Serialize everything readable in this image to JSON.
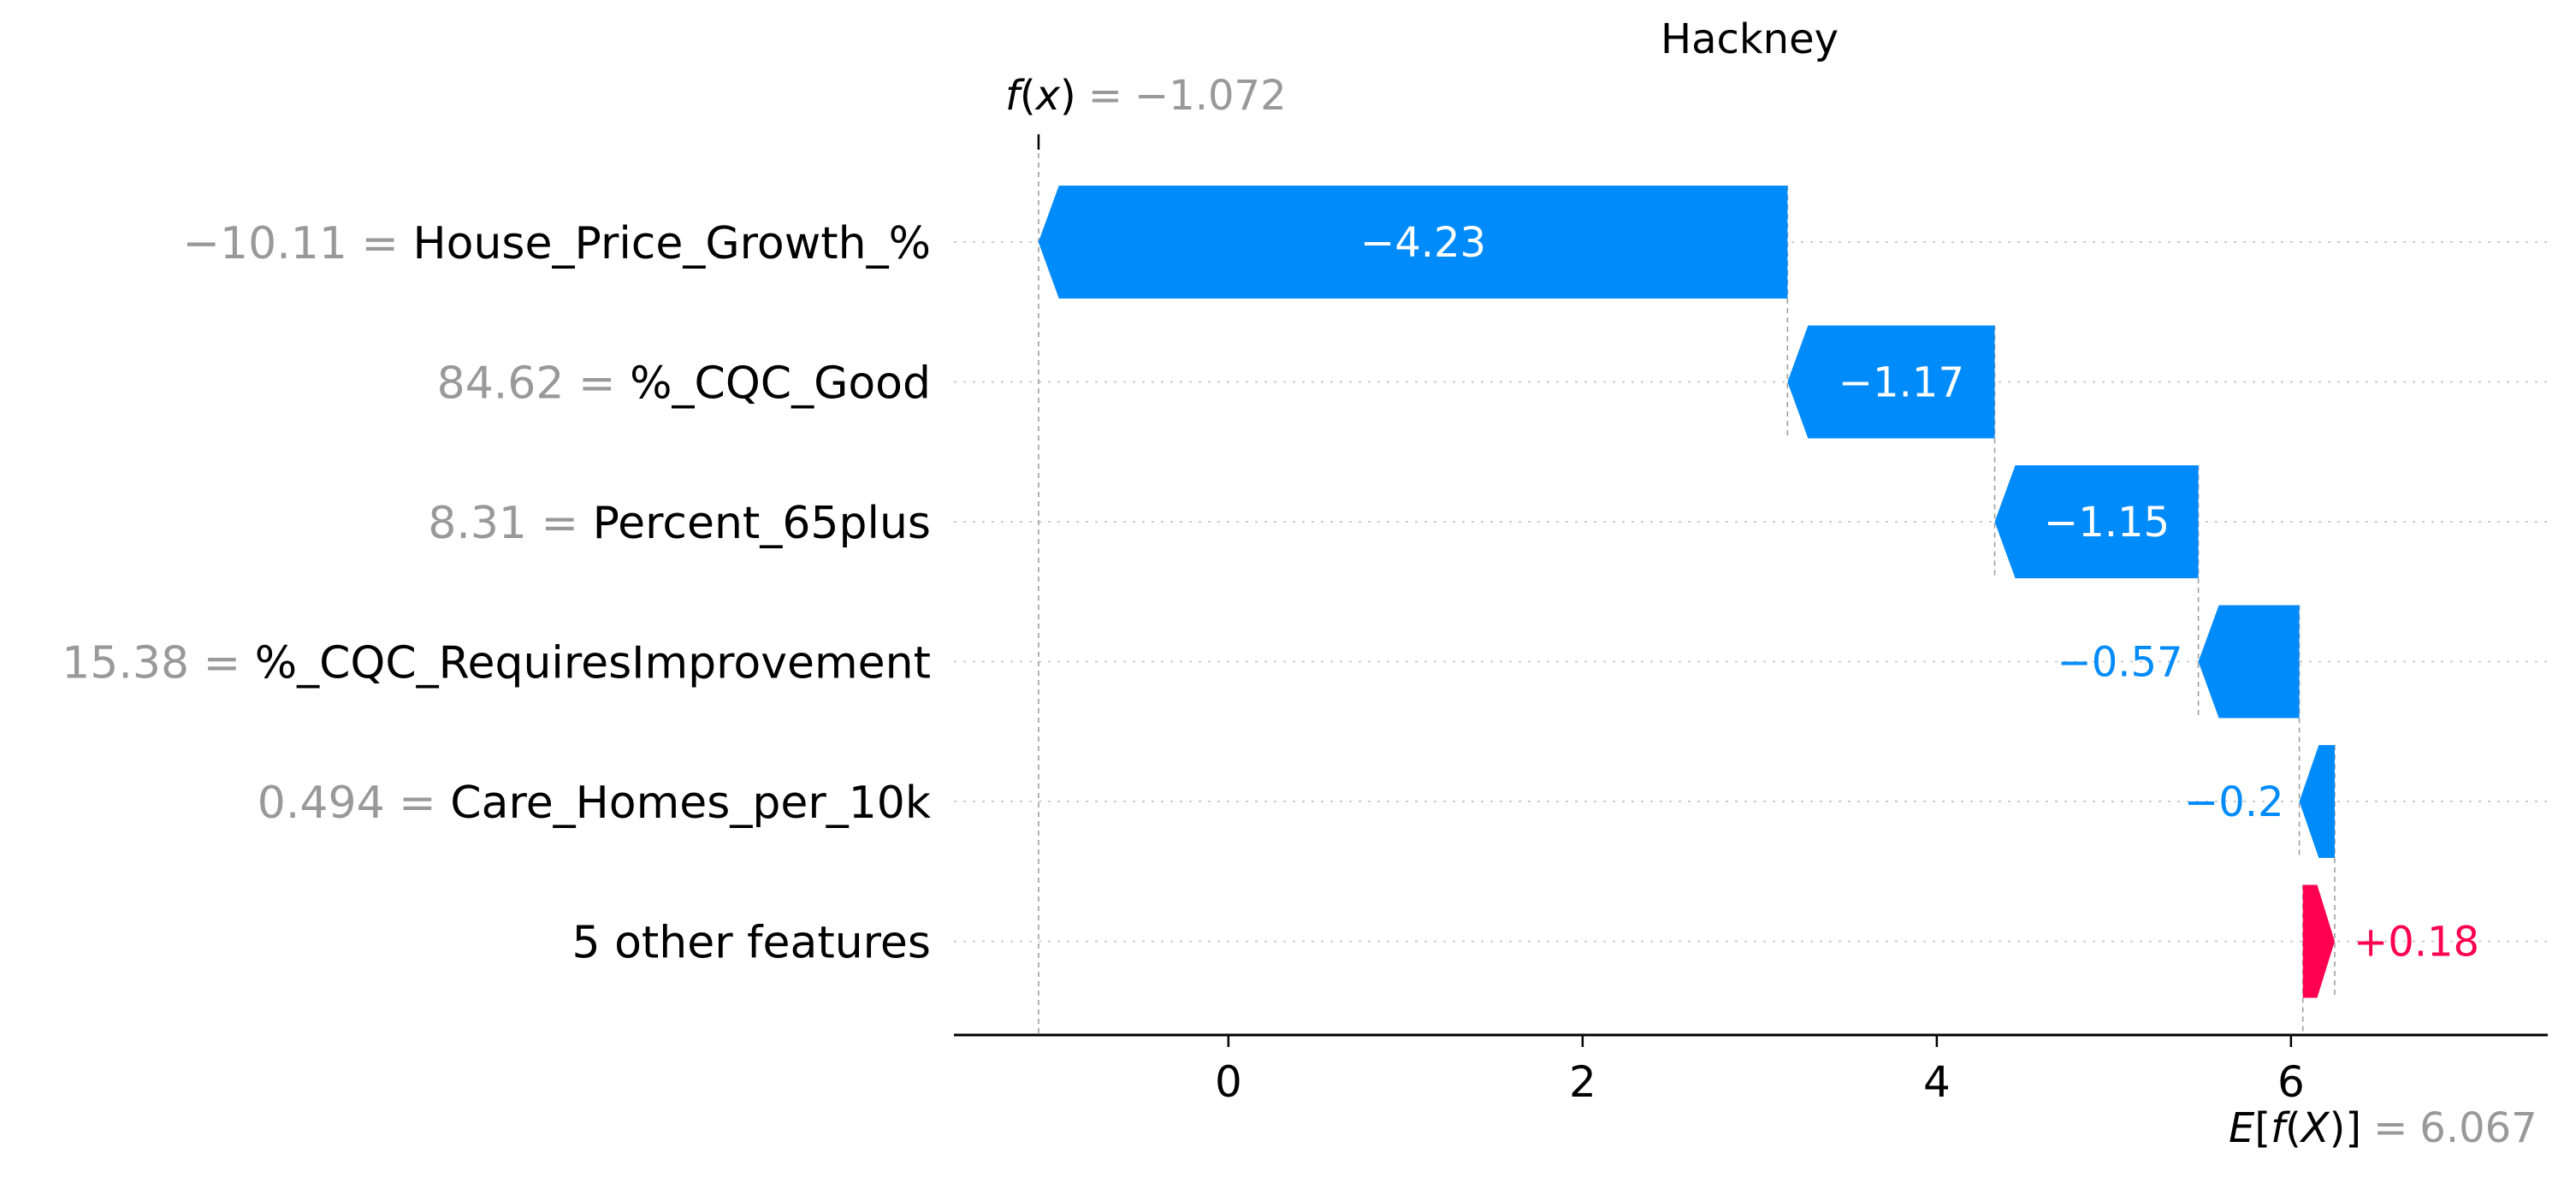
{
  "chart_data": {
    "type": "waterfall",
    "title": "Hackney",
    "base_value": 6.067,
    "output_value": -1.072,
    "fx_label": {
      "fn": "f",
      "open": "(",
      "var": "x",
      "close": ")",
      "equals": "=",
      "value": "−1.072"
    },
    "ex_label": {
      "fn": "E",
      "open": "[",
      "fn2": "f",
      "paren_open": "(",
      "var": "X",
      "paren_close": ")",
      "close": "]",
      "equals": "=",
      "value": "6.067"
    },
    "xlim": [
      -1.55,
      7.45
    ],
    "xticks": [
      0,
      2,
      4,
      6
    ],
    "xtick_labels": [
      "0",
      "2",
      "4",
      "6"
    ],
    "features": [
      {
        "value_text": "−10.11 =",
        "name": "House_Price_Growth_%",
        "contribution": -4.23,
        "label": "−4.23"
      },
      {
        "value_text": "84.62 =",
        "name": "%_CQC_Good",
        "contribution": -1.17,
        "label": "−1.17"
      },
      {
        "value_text": "8.31 =",
        "name": "Percent_65plus",
        "contribution": -1.15,
        "label": "−1.15"
      },
      {
        "value_text": "15.38 =",
        "name": "%_CQC_RequiresImprovement",
        "contribution": -0.57,
        "label": "−0.57"
      },
      {
        "value_text": "0.494 =",
        "name": "Care_Homes_per_10k",
        "contribution": -0.2,
        "label": "−0.2"
      },
      {
        "value_text": "",
        "name": "5 other features",
        "contribution": 0.18,
        "label": "+0.18"
      }
    ],
    "colors": {
      "negative": "#008bfb",
      "positive": "#ff0051",
      "axis": "#000000",
      "grid": "#cccccc",
      "muted": "#999999"
    }
  }
}
